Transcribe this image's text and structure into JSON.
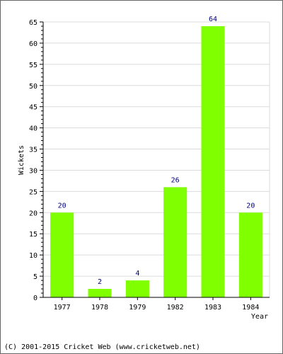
{
  "chart_data": {
    "type": "bar",
    "categories": [
      "1977",
      "1978",
      "1979",
      "1982",
      "1983",
      "1984"
    ],
    "values": [
      20,
      2,
      4,
      26,
      64,
      20
    ],
    "data_labels": [
      "20",
      "2",
      "4",
      "26",
      "64",
      "20"
    ],
    "title": "",
    "xlabel": "Year",
    "ylabel": "Wickets",
    "ylim": [
      0,
      65
    ],
    "yticks": [
      0,
      5,
      10,
      15,
      20,
      25,
      30,
      35,
      40,
      45,
      50,
      55,
      60,
      65
    ],
    "grid": true,
    "legend": "none",
    "bar_color": "#80ff00",
    "label_color": "#000080"
  },
  "footer": {
    "copyright": "(C) 2001-2015 Cricket Web (www.cricketweb.net)"
  }
}
